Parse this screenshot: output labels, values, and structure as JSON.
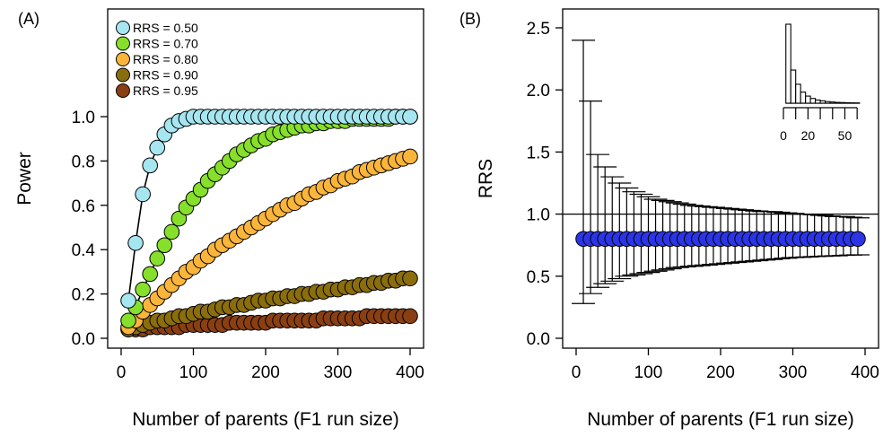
{
  "chart_data": [
    {
      "panel_label": "(A)",
      "type": "line",
      "xlabel": "Number of parents (F1 run size)",
      "ylabel": "Power",
      "xlim": [
        0,
        400
      ],
      "ylim": [
        0,
        1.1
      ],
      "x_ticks": [
        "0",
        "100",
        "200",
        "300",
        "400"
      ],
      "y_ticks": [
        "0.0",
        "0.2",
        "0.4",
        "0.6",
        "0.8",
        "1.0"
      ],
      "legend_position": "top-left",
      "x": [
        10,
        20,
        30,
        40,
        50,
        60,
        70,
        80,
        90,
        100,
        110,
        120,
        130,
        140,
        150,
        160,
        170,
        180,
        190,
        200,
        210,
        220,
        230,
        240,
        250,
        260,
        270,
        280,
        290,
        300,
        310,
        320,
        330,
        340,
        350,
        360,
        370,
        380,
        390,
        400
      ],
      "series": [
        {
          "name": "RRS = 0.50",
          "color": "#a6e6f0",
          "values": [
            0.17,
            0.43,
            0.65,
            0.78,
            0.86,
            0.92,
            0.96,
            0.98,
            0.99,
            1.0,
            1.0,
            1.0,
            1.0,
            1.0,
            1.0,
            1.0,
            1.0,
            1.0,
            1.0,
            1.0,
            1.0,
            1.0,
            1.0,
            1.0,
            1.0,
            1.0,
            1.0,
            1.0,
            1.0,
            1.0,
            1.0,
            1.0,
            1.0,
            1.0,
            1.0,
            1.0,
            1.0,
            1.0,
            1.0,
            1.0
          ]
        },
        {
          "name": "RRS = 0.70",
          "color": "#86df2a",
          "values": [
            0.08,
            0.14,
            0.22,
            0.29,
            0.36,
            0.42,
            0.48,
            0.54,
            0.59,
            0.63,
            0.67,
            0.71,
            0.74,
            0.77,
            0.8,
            0.83,
            0.85,
            0.87,
            0.89,
            0.9,
            0.92,
            0.93,
            0.94,
            0.95,
            0.96,
            0.96,
            0.97,
            0.97,
            0.98,
            0.98,
            0.98,
            0.99,
            0.99,
            0.99,
            0.99,
            0.99,
            0.99,
            1.0,
            1.0,
            1.0
          ]
        },
        {
          "name": "RRS = 0.80",
          "color": "#fbb53a",
          "values": [
            0.05,
            0.08,
            0.12,
            0.15,
            0.18,
            0.21,
            0.24,
            0.27,
            0.3,
            0.32,
            0.35,
            0.37,
            0.4,
            0.42,
            0.44,
            0.46,
            0.48,
            0.5,
            0.52,
            0.54,
            0.56,
            0.58,
            0.6,
            0.61,
            0.63,
            0.65,
            0.66,
            0.68,
            0.69,
            0.71,
            0.72,
            0.73,
            0.75,
            0.76,
            0.77,
            0.78,
            0.79,
            0.8,
            0.81,
            0.82
          ]
        },
        {
          "name": "RRS = 0.90",
          "color": "#8a6d0c",
          "values": [
            0.04,
            0.05,
            0.06,
            0.07,
            0.08,
            0.08,
            0.09,
            0.1,
            0.1,
            0.11,
            0.12,
            0.12,
            0.13,
            0.14,
            0.14,
            0.15,
            0.15,
            0.16,
            0.17,
            0.17,
            0.18,
            0.18,
            0.19,
            0.19,
            0.2,
            0.2,
            0.21,
            0.21,
            0.22,
            0.22,
            0.23,
            0.23,
            0.24,
            0.24,
            0.25,
            0.25,
            0.26,
            0.26,
            0.27,
            0.27
          ]
        },
        {
          "name": "RRS = 0.95",
          "color": "#8a3f12",
          "values": [
            0.04,
            0.04,
            0.04,
            0.05,
            0.05,
            0.05,
            0.05,
            0.05,
            0.06,
            0.06,
            0.06,
            0.06,
            0.06,
            0.06,
            0.07,
            0.07,
            0.07,
            0.07,
            0.07,
            0.07,
            0.08,
            0.08,
            0.08,
            0.08,
            0.08,
            0.08,
            0.08,
            0.09,
            0.09,
            0.09,
            0.09,
            0.09,
            0.09,
            0.1,
            0.1,
            0.1,
            0.1,
            0.1,
            0.1,
            0.1
          ]
        }
      ]
    },
    {
      "panel_label": "(B)",
      "type": "scatter",
      "xlabel": "Number of parents (F1 run size)",
      "ylabel": "RRS",
      "xlim": [
        0,
        400
      ],
      "ylim": [
        0,
        2.5
      ],
      "x_ticks": [
        "0",
        "100",
        "200",
        "300",
        "400"
      ],
      "y_ticks": [
        "0.0",
        "0.5",
        "1.0",
        "1.5",
        "2.0",
        "2.5"
      ],
      "reference_line": 1.0,
      "point_color": "#2b35e6",
      "x": [
        10,
        20,
        30,
        40,
        50,
        60,
        70,
        80,
        90,
        100,
        110,
        120,
        130,
        140,
        150,
        160,
        170,
        180,
        190,
        200,
        210,
        220,
        230,
        240,
        250,
        260,
        270,
        280,
        290,
        300,
        310,
        320,
        330,
        340,
        350,
        360,
        370,
        380,
        390
      ],
      "values": [
        0.8,
        0.8,
        0.8,
        0.8,
        0.8,
        0.8,
        0.8,
        0.8,
        0.8,
        0.8,
        0.8,
        0.8,
        0.8,
        0.8,
        0.8,
        0.8,
        0.8,
        0.8,
        0.8,
        0.8,
        0.8,
        0.8,
        0.8,
        0.8,
        0.8,
        0.8,
        0.8,
        0.8,
        0.8,
        0.8,
        0.8,
        0.8,
        0.8,
        0.8,
        0.8,
        0.8,
        0.8,
        0.8,
        0.8
      ],
      "upper": [
        2.4,
        1.91,
        1.48,
        1.38,
        1.3,
        1.25,
        1.21,
        1.18,
        1.16,
        1.14,
        1.12,
        1.11,
        1.1,
        1.09,
        1.08,
        1.07,
        1.065,
        1.06,
        1.055,
        1.05,
        1.045,
        1.04,
        1.035,
        1.03,
        1.025,
        1.02,
        1.02,
        1.015,
        1.01,
        1.005,
        1.0,
        1.0,
        0.995,
        0.99,
        0.985,
        0.98,
        0.98,
        0.975,
        0.97
      ],
      "lower": [
        0.28,
        0.36,
        0.41,
        0.44,
        0.46,
        0.48,
        0.5,
        0.51,
        0.52,
        0.53,
        0.54,
        0.55,
        0.56,
        0.57,
        0.575,
        0.58,
        0.585,
        0.59,
        0.595,
        0.6,
        0.605,
        0.61,
        0.615,
        0.62,
        0.625,
        0.63,
        0.635,
        0.64,
        0.645,
        0.65,
        0.652,
        0.655,
        0.658,
        0.66,
        0.663,
        0.665,
        0.668,
        0.67,
        0.672
      ],
      "inset": {
        "type": "histogram",
        "x_ticks": [
          "0",
          "20",
          "50"
        ],
        "xlim": [
          0,
          65
        ],
        "bin_width": 4,
        "bin_starts": [
          2,
          6,
          10,
          14,
          18,
          22,
          26,
          30,
          34,
          38,
          42,
          46,
          50,
          54,
          58
        ],
        "values": [
          1.0,
          0.42,
          0.24,
          0.14,
          0.09,
          0.06,
          0.04,
          0.03,
          0.02,
          0.015,
          0.01,
          0.008,
          0.006,
          0.004,
          0.003
        ]
      }
    }
  ]
}
